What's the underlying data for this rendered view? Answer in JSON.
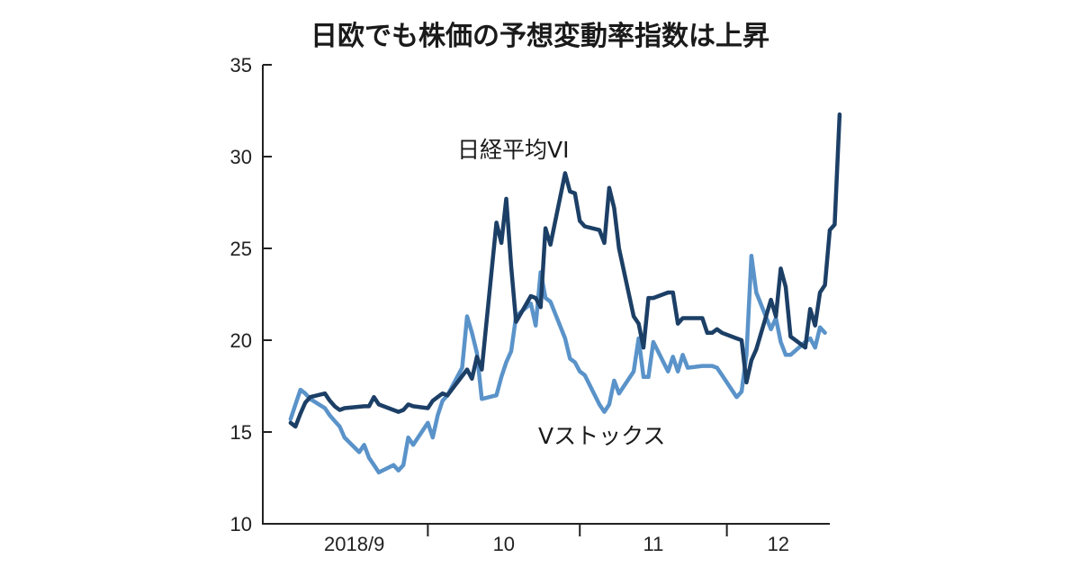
{
  "chart_data": {
    "type": "line",
    "title": "日欧でも株価の予想変動率指数は上昇",
    "xlabel": "",
    "ylabel": "",
    "ylim": [
      10,
      35
    ],
    "yticks": [
      10,
      15,
      20,
      25,
      30,
      35
    ],
    "month_labels": [
      "2018/9",
      "10",
      "11",
      "12"
    ],
    "month_starts": [
      "2018-09-01",
      "2018-10-01",
      "2018-11-01",
      "2018-12-01"
    ],
    "xrange": [
      "2018-09-01",
      "2018-12-22"
    ],
    "grid": false,
    "legend": "direct labels on lines",
    "colors": {
      "nikkei": "#1c3f66",
      "vstoxx": "#5a93c9"
    },
    "series": [
      {
        "name": "日経平均VI",
        "color": "#1c3f66",
        "points": [
          [
            "2018-09-03",
            15.5
          ],
          [
            "2018-09-04",
            15.3
          ],
          [
            "2018-09-05",
            16.0
          ],
          [
            "2018-09-06",
            16.6
          ],
          [
            "2018-09-07",
            16.9
          ],
          [
            "2018-09-10",
            17.1
          ],
          [
            "2018-09-11",
            16.7
          ],
          [
            "2018-09-12",
            16.4
          ],
          [
            "2018-09-13",
            16.2
          ],
          [
            "2018-09-14",
            16.3
          ],
          [
            "2018-09-18",
            16.4
          ],
          [
            "2018-09-19",
            16.4
          ],
          [
            "2018-09-20",
            16.9
          ],
          [
            "2018-09-21",
            16.5
          ],
          [
            "2018-09-25",
            16.1
          ],
          [
            "2018-09-26",
            16.2
          ],
          [
            "2018-09-27",
            16.5
          ],
          [
            "2018-09-28",
            16.4
          ],
          [
            "2018-10-01",
            16.3
          ],
          [
            "2018-10-02",
            16.7
          ],
          [
            "2018-10-03",
            16.9
          ],
          [
            "2018-10-04",
            17.1
          ],
          [
            "2018-10-05",
            17.0
          ],
          [
            "2018-10-09",
            18.4
          ],
          [
            "2018-10-10",
            17.9
          ],
          [
            "2018-10-11",
            19.1
          ],
          [
            "2018-10-12",
            18.4
          ],
          [
            "2018-10-15",
            26.4
          ],
          [
            "2018-10-16",
            25.3
          ],
          [
            "2018-10-17",
            27.7
          ],
          [
            "2018-10-18",
            24.0
          ],
          [
            "2018-10-19",
            21.0
          ],
          [
            "2018-10-22",
            22.4
          ],
          [
            "2018-10-23",
            22.3
          ],
          [
            "2018-10-24",
            21.8
          ],
          [
            "2018-10-25",
            26.1
          ],
          [
            "2018-10-26",
            25.2
          ],
          [
            "2018-10-29",
            29.1
          ],
          [
            "2018-10-30",
            28.1
          ],
          [
            "2018-10-31",
            28.0
          ],
          [
            "2018-11-01",
            26.5
          ],
          [
            "2018-11-02",
            26.2
          ],
          [
            "2018-11-05",
            26.0
          ],
          [
            "2018-11-06",
            25.3
          ],
          [
            "2018-11-07",
            28.3
          ],
          [
            "2018-11-08",
            27.2
          ],
          [
            "2018-11-09",
            25.0
          ],
          [
            "2018-11-12",
            21.3
          ],
          [
            "2018-11-13",
            20.9
          ],
          [
            "2018-11-14",
            19.6
          ],
          [
            "2018-11-15",
            22.3
          ],
          [
            "2018-11-16",
            22.3
          ],
          [
            "2018-11-19",
            22.6
          ],
          [
            "2018-11-20",
            22.6
          ],
          [
            "2018-11-21",
            20.9
          ],
          [
            "2018-11-22",
            21.2
          ],
          [
            "2018-11-26",
            21.2
          ],
          [
            "2018-11-27",
            20.4
          ],
          [
            "2018-11-28",
            20.4
          ],
          [
            "2018-11-29",
            20.6
          ],
          [
            "2018-11-30",
            20.4
          ],
          [
            "2018-12-03",
            20.1
          ],
          [
            "2018-12-04",
            20.0
          ],
          [
            "2018-12-05",
            17.7
          ],
          [
            "2018-12-06",
            18.9
          ],
          [
            "2018-12-07",
            19.5
          ],
          [
            "2018-12-10",
            22.2
          ],
          [
            "2018-12-11",
            21.3
          ],
          [
            "2018-12-12",
            23.9
          ],
          [
            "2018-12-13",
            22.9
          ],
          [
            "2018-12-14",
            20.2
          ],
          [
            "2018-12-17",
            19.6
          ],
          [
            "2018-12-18",
            21.7
          ],
          [
            "2018-12-19",
            20.8
          ],
          [
            "2018-12-20",
            22.6
          ],
          [
            "2018-12-21",
            23.0
          ],
          [
            "2018-12-22",
            26.0
          ],
          [
            "2018-12-23",
            26.3
          ],
          [
            "2018-12-24",
            32.3
          ]
        ]
      },
      {
        "name": "Vストックス",
        "color": "#5a93c9",
        "points": [
          [
            "2018-09-03",
            15.7
          ],
          [
            "2018-09-04",
            16.5
          ],
          [
            "2018-09-05",
            17.3
          ],
          [
            "2018-09-06",
            17.1
          ],
          [
            "2018-09-07",
            16.8
          ],
          [
            "2018-09-10",
            16.3
          ],
          [
            "2018-09-11",
            15.9
          ],
          [
            "2018-09-12",
            15.6
          ],
          [
            "2018-09-13",
            15.3
          ],
          [
            "2018-09-14",
            14.7
          ],
          [
            "2018-09-17",
            13.9
          ],
          [
            "2018-09-18",
            14.3
          ],
          [
            "2018-09-19",
            13.6
          ],
          [
            "2018-09-20",
            13.2
          ],
          [
            "2018-09-21",
            12.8
          ],
          [
            "2018-09-24",
            13.2
          ],
          [
            "2018-09-25",
            12.9
          ],
          [
            "2018-09-26",
            13.2
          ],
          [
            "2018-09-27",
            14.7
          ],
          [
            "2018-09-28",
            14.3
          ],
          [
            "2018-10-01",
            15.5
          ],
          [
            "2018-10-02",
            14.7
          ],
          [
            "2018-10-03",
            15.9
          ],
          [
            "2018-10-04",
            16.7
          ],
          [
            "2018-10-05",
            17.0
          ],
          [
            "2018-10-08",
            18.5
          ],
          [
            "2018-10-09",
            21.3
          ],
          [
            "2018-10-10",
            20.4
          ],
          [
            "2018-10-11",
            19.3
          ],
          [
            "2018-10-12",
            16.8
          ],
          [
            "2018-10-15",
            17.0
          ],
          [
            "2018-10-16",
            18.0
          ],
          [
            "2018-10-17",
            18.8
          ],
          [
            "2018-10-18",
            19.4
          ],
          [
            "2018-10-19",
            21.3
          ],
          [
            "2018-10-22",
            22.0
          ],
          [
            "2018-10-23",
            20.8
          ],
          [
            "2018-10-24",
            23.7
          ],
          [
            "2018-10-25",
            22.3
          ],
          [
            "2018-10-26",
            22.1
          ],
          [
            "2018-10-29",
            20.1
          ],
          [
            "2018-10-30",
            19.0
          ],
          [
            "2018-10-31",
            18.8
          ],
          [
            "2018-11-01",
            18.3
          ],
          [
            "2018-11-02",
            18.1
          ],
          [
            "2018-11-05",
            16.5
          ],
          [
            "2018-11-06",
            16.1
          ],
          [
            "2018-11-07",
            16.5
          ],
          [
            "2018-11-08",
            17.8
          ],
          [
            "2018-11-09",
            17.1
          ],
          [
            "2018-11-12",
            18.3
          ],
          [
            "2018-11-13",
            20.1
          ],
          [
            "2018-11-14",
            18.0
          ],
          [
            "2018-11-15",
            18.0
          ],
          [
            "2018-11-16",
            19.9
          ],
          [
            "2018-11-19",
            18.3
          ],
          [
            "2018-11-20",
            19.1
          ],
          [
            "2018-11-21",
            18.3
          ],
          [
            "2018-11-22",
            19.2
          ],
          [
            "2018-11-23",
            18.5
          ],
          [
            "2018-11-26",
            18.6
          ],
          [
            "2018-11-27",
            18.6
          ],
          [
            "2018-11-28",
            18.6
          ],
          [
            "2018-11-29",
            18.5
          ],
          [
            "2018-11-30",
            18.1
          ],
          [
            "2018-12-03",
            16.9
          ],
          [
            "2018-12-04",
            17.2
          ],
          [
            "2018-12-05",
            19.2
          ],
          [
            "2018-12-06",
            24.6
          ],
          [
            "2018-12-07",
            22.6
          ],
          [
            "2018-12-10",
            20.6
          ],
          [
            "2018-12-11",
            21.2
          ],
          [
            "2018-12-12",
            19.9
          ],
          [
            "2018-12-13",
            19.2
          ],
          [
            "2018-12-14",
            19.2
          ],
          [
            "2018-12-17",
            19.9
          ],
          [
            "2018-12-18",
            20.1
          ],
          [
            "2018-12-19",
            19.6
          ],
          [
            "2018-12-20",
            20.7
          ],
          [
            "2018-12-21",
            20.4
          ]
        ]
      }
    ]
  }
}
